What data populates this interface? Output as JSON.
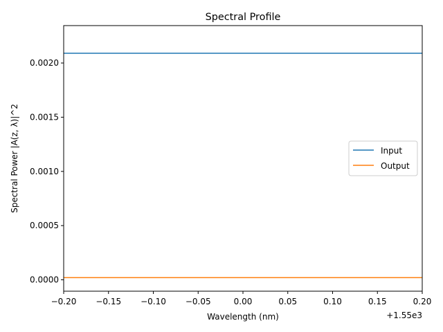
{
  "chart_data": {
    "type": "line",
    "title": "Spectral Profile",
    "xlabel": "Wavelength (nm)",
    "ylabel": "Spectral Power |A(z, λ)|^2",
    "x_offset_label": "+1.55e3",
    "xlim": [
      -0.2,
      0.2
    ],
    "ylim": [
      -0.000105,
      0.002345
    ],
    "x_ticks": [
      -0.2,
      -0.15,
      -0.1,
      -0.05,
      0.0,
      0.05,
      0.1,
      0.15,
      0.2
    ],
    "x_tick_labels": [
      "−0.20",
      "−0.15",
      "−0.10",
      "−0.05",
      "0.00",
      "0.05",
      "0.10",
      "0.15",
      "0.20"
    ],
    "y_ticks": [
      0.0,
      0.0005,
      0.001,
      0.0015,
      0.002
    ],
    "y_tick_labels": [
      "0.0000",
      "0.0005",
      "0.0010",
      "0.0015",
      "0.0020"
    ],
    "grid": false,
    "legend_position": "center-right",
    "series": [
      {
        "name": "Input",
        "color": "#1f77b4",
        "x": [
          -0.2,
          0.2
        ],
        "y": [
          0.00209,
          0.00209
        ]
      },
      {
        "name": "Output",
        "color": "#ff7f0e",
        "x": [
          -0.2,
          0.2
        ],
        "y": [
          2e-05,
          2e-05
        ]
      }
    ]
  }
}
